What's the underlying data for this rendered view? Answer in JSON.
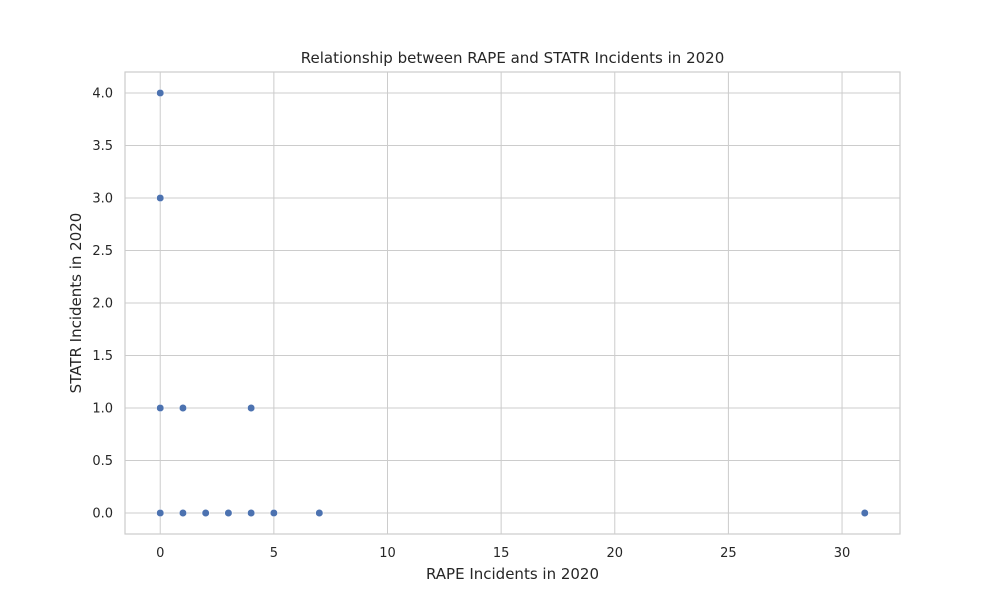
{
  "chart_data": {
    "type": "scatter",
    "title": "Relationship between RAPE and STATR Incidents in 2020",
    "xlabel": "RAPE Incidents in 2020",
    "ylabel": "STATR Incidents in 2020",
    "xlim": [
      -1.55,
      32.55
    ],
    "ylim": [
      -0.2,
      4.2
    ],
    "xticks": [
      0,
      5,
      10,
      15,
      20,
      25,
      30
    ],
    "yticks": [
      0.0,
      0.5,
      1.0,
      1.5,
      2.0,
      2.5,
      3.0,
      3.5,
      4.0
    ],
    "ytick_labels": [
      "0.0",
      "0.5",
      "1.0",
      "1.5",
      "2.0",
      "2.5",
      "3.0",
      "3.5",
      "4.0"
    ],
    "grid": true,
    "point_color": "#4c72b0",
    "points": [
      {
        "x": 0,
        "y": 4
      },
      {
        "x": 0,
        "y": 3
      },
      {
        "x": 0,
        "y": 1
      },
      {
        "x": 1,
        "y": 1
      },
      {
        "x": 4,
        "y": 1
      },
      {
        "x": 0,
        "y": 0
      },
      {
        "x": 1,
        "y": 0
      },
      {
        "x": 2,
        "y": 0
      },
      {
        "x": 3,
        "y": 0
      },
      {
        "x": 4,
        "y": 0
      },
      {
        "x": 5,
        "y": 0
      },
      {
        "x": 7,
        "y": 0
      },
      {
        "x": 31,
        "y": 0
      }
    ]
  }
}
